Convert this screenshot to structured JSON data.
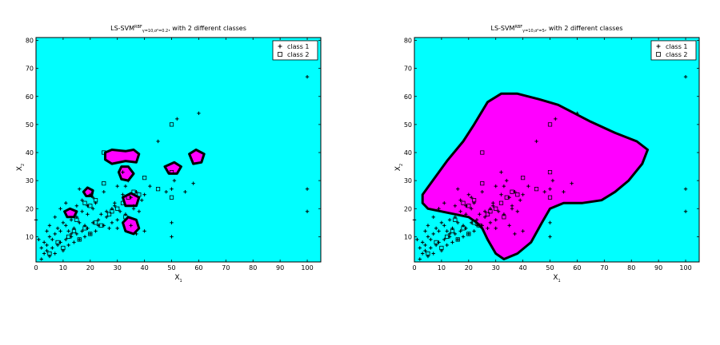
{
  "chart_data": [
    {
      "type": "scatter",
      "title": "LS-SVM",
      "title_superscript": "RBF",
      "title_subscript": "γ=10,σ²=0.2",
      "title_suffix": ", with 2 different classes",
      "xlabel": "X",
      "xlabel_sub": "1",
      "ylabel": "X",
      "ylabel_sub": "2",
      "xlim": [
        0,
        105
      ],
      "ylim": [
        1,
        81
      ],
      "xticks": [
        0,
        10,
        20,
        30,
        40,
        50,
        60,
        70,
        80,
        90,
        100
      ],
      "yticks": [
        10,
        20,
        30,
        40,
        50,
        60,
        70,
        80
      ],
      "background": "#00ffff",
      "region_fill": "#ff00ff",
      "legend_position": "top-right",
      "legend": [
        {
          "label": "class 1",
          "marker": "plus"
        },
        {
          "label": "class 2",
          "marker": "square"
        }
      ],
      "regions": [
        [
          [
            25.5,
            40
          ],
          [
            28,
            41
          ],
          [
            33,
            40.5
          ],
          [
            36,
            41
          ],
          [
            38,
            39.5
          ],
          [
            37,
            36.5
          ],
          [
            33,
            37
          ],
          [
            28,
            36
          ],
          [
            25.5,
            37.5
          ]
        ],
        [
          [
            30.5,
            33
          ],
          [
            31.5,
            35
          ],
          [
            34,
            35
          ],
          [
            36,
            32.5
          ],
          [
            34,
            30
          ],
          [
            31.5,
            30.5
          ]
        ],
        [
          [
            32,
            24
          ],
          [
            35,
            25.5
          ],
          [
            38,
            24
          ],
          [
            37,
            21
          ],
          [
            33,
            21
          ]
        ],
        [
          [
            32,
            15
          ],
          [
            34,
            17
          ],
          [
            37,
            16
          ],
          [
            38,
            13
          ],
          [
            36,
            11
          ],
          [
            33,
            12
          ]
        ],
        [
          [
            47.5,
            35
          ],
          [
            51,
            36.5
          ],
          [
            53.5,
            35
          ],
          [
            52,
            32.5
          ],
          [
            49,
            32.5
          ]
        ],
        [
          [
            56.5,
            39.5
          ],
          [
            59,
            41
          ],
          [
            62,
            39.5
          ],
          [
            61,
            36.5
          ],
          [
            58,
            36
          ]
        ],
        [
          [
            17.5,
            26
          ],
          [
            19,
            27.5
          ],
          [
            21,
            26.5
          ],
          [
            20.5,
            24.5
          ],
          [
            18.5,
            24.5
          ]
        ],
        [
          [
            10.5,
            19
          ],
          [
            12.5,
            20
          ],
          [
            15,
            19
          ],
          [
            14,
            17
          ],
          [
            11.5,
            17
          ]
        ]
      ],
      "series": [
        {
          "name": "class 1",
          "marker": "plus",
          "x": [
            0,
            1,
            2,
            3,
            3,
            4,
            4,
            5,
            5,
            6,
            6,
            7,
            7,
            8,
            8,
            9,
            9,
            10,
            10,
            11,
            11,
            12,
            12,
            13,
            13,
            14,
            14,
            15,
            15,
            16,
            16,
            17,
            17,
            18,
            18,
            19,
            19,
            20,
            20,
            21,
            21,
            22,
            22,
            23,
            24,
            25,
            26,
            27,
            28,
            29,
            30,
            30,
            31,
            32,
            33,
            34,
            35,
            35,
            36,
            37,
            38,
            39,
            40,
            42,
            45,
            48,
            50,
            50,
            50,
            51,
            52,
            55,
            58,
            60,
            100,
            100,
            100,
            9,
            11,
            16,
            7,
            5,
            2,
            4,
            13,
            15,
            17,
            19,
            21,
            23,
            25,
            26,
            28,
            29,
            30,
            32,
            33,
            37,
            40,
            36
          ],
          "y": [
            16,
            9,
            6,
            4,
            8,
            5,
            7,
            3,
            10,
            6,
            9,
            4,
            11,
            7,
            13,
            8,
            12,
            5,
            15,
            9,
            14,
            7,
            12,
            10,
            16,
            8,
            13,
            11,
            17,
            9,
            15,
            12,
            19,
            10,
            14,
            13,
            21,
            11,
            25,
            15,
            20,
            12,
            22,
            16,
            18,
            14,
            17,
            13,
            20,
            22,
            16,
            28,
            19,
            25,
            18,
            30,
            14,
            24,
            21,
            26,
            19,
            23,
            25,
            28,
            44,
            26,
            27,
            15,
            10,
            30,
            52,
            26,
            29,
            54,
            67,
            27,
            19,
            20,
            22,
            27,
            17,
            14,
            2,
            12,
            11,
            21,
            23,
            18,
            24,
            14,
            26,
            19,
            15,
            21,
            13,
            33,
            28,
            11,
            12,
            20
          ]
        },
        {
          "name": "class 2",
          "marker": "square",
          "x": [
            5,
            8,
            12,
            14,
            16,
            18,
            20,
            22,
            24,
            25,
            27,
            30,
            32,
            34,
            36,
            38,
            50,
            50,
            50,
            10,
            15,
            20,
            25,
            28,
            33,
            40,
            45,
            22,
            18
          ],
          "y": [
            4,
            8,
            10,
            12,
            9,
            13,
            11,
            15,
            14,
            40,
            18,
            20,
            22,
            24,
            26,
            25,
            50,
            33,
            24,
            6,
            16,
            21,
            29,
            19,
            17,
            31,
            27,
            23,
            22
          ]
        }
      ]
    },
    {
      "type": "scatter",
      "title": "LS-SVM",
      "title_superscript": "RBF",
      "title_subscript": "γ=10,σ²=5",
      "title_suffix": ", with 2 different classes",
      "xlabel": "X",
      "xlabel_sub": "1",
      "ylabel": "X",
      "ylabel_sub": "2",
      "xlim": [
        0,
        105
      ],
      "ylim": [
        1,
        81
      ],
      "xticks": [
        0,
        10,
        20,
        30,
        40,
        50,
        60,
        70,
        80,
        90,
        100
      ],
      "yticks": [
        10,
        20,
        30,
        40,
        50,
        60,
        70,
        80
      ],
      "background": "#00ffff",
      "region_fill": "#ff00ff",
      "legend_position": "top-right",
      "legend": [
        {
          "label": "class 1",
          "marker": "plus"
        },
        {
          "label": "class 2",
          "marker": "square"
        }
      ],
      "regions": [
        [
          [
            3,
            25
          ],
          [
            6,
            29
          ],
          [
            12,
            37
          ],
          [
            18,
            44
          ],
          [
            22,
            50
          ],
          [
            27,
            58
          ],
          [
            32,
            61
          ],
          [
            38,
            61
          ],
          [
            46,
            59
          ],
          [
            53,
            57
          ],
          [
            59,
            54
          ],
          [
            65,
            51
          ],
          [
            74,
            47
          ],
          [
            82,
            44
          ],
          [
            86,
            41
          ],
          [
            84,
            36
          ],
          [
            79,
            30
          ],
          [
            74,
            26
          ],
          [
            69,
            23
          ],
          [
            62,
            22
          ],
          [
            55,
            22
          ],
          [
            50,
            20
          ],
          [
            47,
            15
          ],
          [
            43,
            8
          ],
          [
            38,
            4
          ],
          [
            33,
            2
          ],
          [
            30,
            4
          ],
          [
            27,
            9
          ],
          [
            25,
            13
          ],
          [
            23,
            15
          ],
          [
            20,
            17
          ],
          [
            15,
            18
          ],
          [
            10,
            19
          ],
          [
            5,
            20
          ],
          [
            3,
            22
          ]
        ]
      ],
      "series": [
        {
          "name": "class 1",
          "marker": "plus",
          "x": [
            0,
            1,
            2,
            3,
            3,
            4,
            4,
            5,
            5,
            6,
            6,
            7,
            7,
            8,
            8,
            9,
            9,
            10,
            10,
            11,
            11,
            12,
            12,
            13,
            13,
            14,
            14,
            15,
            15,
            16,
            16,
            17,
            17,
            18,
            18,
            19,
            19,
            20,
            20,
            21,
            21,
            22,
            22,
            23,
            24,
            25,
            26,
            27,
            28,
            29,
            30,
            30,
            31,
            32,
            33,
            34,
            35,
            35,
            36,
            37,
            38,
            39,
            40,
            42,
            45,
            48,
            50,
            50,
            50,
            51,
            52,
            55,
            58,
            60,
            100,
            100,
            100,
            9,
            11,
            16,
            7,
            5,
            2,
            4,
            13,
            15,
            17,
            19,
            21,
            23,
            25,
            26,
            28,
            29,
            30,
            32,
            33,
            37,
            40,
            36
          ],
          "y": [
            16,
            9,
            6,
            4,
            8,
            5,
            7,
            3,
            10,
            6,
            9,
            4,
            11,
            7,
            13,
            8,
            12,
            5,
            15,
            9,
            14,
            7,
            12,
            10,
            16,
            8,
            13,
            11,
            17,
            9,
            15,
            12,
            19,
            10,
            14,
            13,
            21,
            11,
            25,
            15,
            20,
            12,
            22,
            16,
            18,
            14,
            17,
            13,
            20,
            22,
            16,
            28,
            19,
            25,
            18,
            30,
            14,
            24,
            21,
            26,
            19,
            23,
            25,
            28,
            44,
            26,
            27,
            15,
            10,
            30,
            52,
            26,
            29,
            54,
            67,
            27,
            19,
            20,
            22,
            27,
            17,
            14,
            2,
            12,
            11,
            21,
            23,
            18,
            24,
            14,
            26,
            19,
            15,
            21,
            13,
            33,
            28,
            11,
            12,
            20
          ]
        },
        {
          "name": "class 2",
          "marker": "square",
          "x": [
            5,
            8,
            12,
            14,
            16,
            18,
            20,
            22,
            24,
            25,
            27,
            30,
            32,
            34,
            36,
            38,
            50,
            50,
            50,
            10,
            15,
            20,
            25,
            28,
            33,
            40,
            45,
            22,
            18
          ],
          "y": [
            4,
            8,
            10,
            12,
            9,
            13,
            11,
            15,
            14,
            40,
            18,
            20,
            22,
            24,
            26,
            25,
            50,
            33,
            24,
            6,
            16,
            21,
            29,
            19,
            17,
            31,
            27,
            23,
            22
          ]
        }
      ]
    }
  ]
}
